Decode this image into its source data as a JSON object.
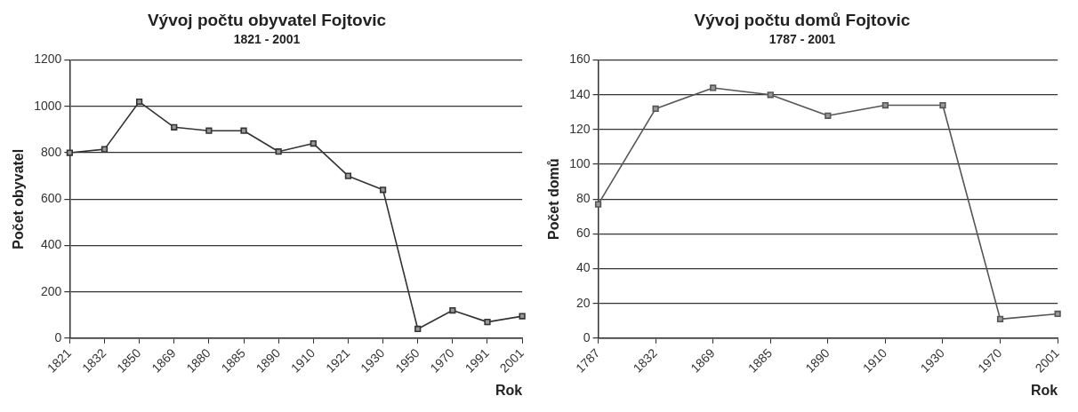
{
  "chart_data": [
    {
      "type": "line",
      "title": "Vývoj počtu obyvatel Fojtovic",
      "subtitle": "1821 - 2001",
      "xlabel": "Rok",
      "ylabel": "Počet obyvatel",
      "categories": [
        "1821",
        "1832",
        "1850",
        "1869",
        "1880",
        "1885",
        "1890",
        "1910",
        "1921",
        "1930",
        "1950",
        "1970",
        "1991",
        "2001"
      ],
      "series": [
        {
          "color": "#333333",
          "values": [
            800,
            815,
            1020,
            910,
            895,
            895,
            805,
            840,
            700,
            640,
            40,
            120,
            70,
            95
          ]
        }
      ],
      "ylim": [
        0,
        1200
      ],
      "yticks": [
        0,
        200,
        400,
        600,
        800,
        1000,
        1200
      ],
      "grid": "y",
      "marker": "square",
      "legend": false
    },
    {
      "type": "line",
      "title": "Vývoj počtu domů Fojtovic",
      "subtitle": "1787 - 2001",
      "xlabel": "Rok",
      "ylabel": "Počet domů",
      "categories": [
        "1787",
        "1832",
        "1869",
        "1885",
        "1890",
        "1910",
        "1930",
        "1970",
        "2001"
      ],
      "series": [
        {
          "color": "#555555",
          "values": [
            77,
            132,
            144,
            140,
            128,
            134,
            134,
            11,
            14
          ]
        }
      ],
      "ylim": [
        0,
        160
      ],
      "yticks": [
        0,
        20,
        40,
        60,
        80,
        100,
        120,
        140,
        160
      ],
      "grid": "y",
      "marker": "square",
      "legend": false
    }
  ]
}
